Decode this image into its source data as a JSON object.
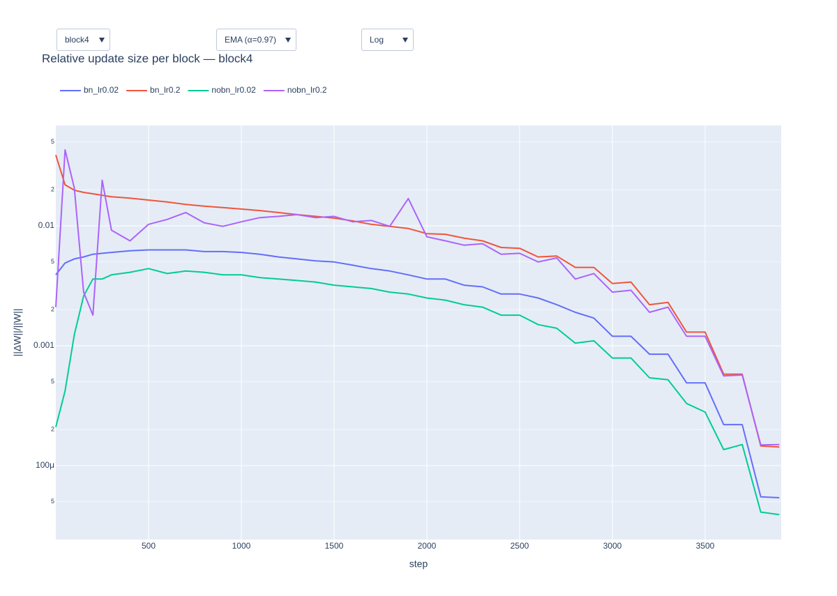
{
  "controls": {
    "block": "block4",
    "smoothing": "EMA (α=0.97)",
    "scale": "Log"
  },
  "chart_data": {
    "type": "line",
    "title": "Relative update size per block — block4",
    "x_label": "step",
    "y_label": "||ΔW||/||W||",
    "ylog": true,
    "grid": true,
    "legend": "top-left",
    "xlim": [
      0,
      3910
    ],
    "ylim": [
      2.42e-05,
      0.0687
    ],
    "xticks": [
      500,
      1000,
      1500,
      2000,
      2500,
      3000,
      3500
    ],
    "yticks": [
      {
        "value": 5e-05,
        "label": "5"
      },
      {
        "value": 0.0001,
        "label": "100μ"
      },
      {
        "value": 0.0002,
        "label": "2"
      },
      {
        "value": 0.0005,
        "label": "5"
      },
      0.001,
      {
        "value": 0.002,
        "label": "2"
      },
      {
        "value": 0.005,
        "label": "5"
      },
      0.01,
      {
        "value": 0.02,
        "label": "2"
      },
      {
        "value": 0.05,
        "label": "5"
      }
    ],
    "x": [
      0,
      50,
      100,
      150,
      200,
      250,
      300,
      400,
      500,
      600,
      700,
      800,
      900,
      1000,
      1100,
      1200,
      1300,
      1400,
      1500,
      1600,
      1700,
      1800,
      1900,
      2000,
      2100,
      2200,
      2300,
      2400,
      2500,
      2600,
      2700,
      2800,
      2900,
      3000,
      3100,
      3200,
      3300,
      3400,
      3500,
      3600,
      3700,
      3800,
      3900
    ],
    "series": [
      {
        "name": "bn_lr0.02",
        "color": "#636efa",
        "values": [
          0.0039,
          0.0049,
          0.0053,
          0.0055,
          0.0058,
          0.0059,
          0.006,
          0.0062,
          0.0063,
          0.0063,
          0.0063,
          0.0061,
          0.0061,
          0.006,
          0.0058,
          0.0055,
          0.0053,
          0.0051,
          0.005,
          0.0047,
          0.0044,
          0.0042,
          0.0039,
          0.0036,
          0.0036,
          0.0032,
          0.0031,
          0.0027,
          0.0027,
          0.0025,
          0.0022,
          0.0019,
          0.0017,
          0.0012,
          0.0012,
          0.00085,
          0.00085,
          0.00049,
          0.00049,
          0.00022,
          0.00022,
          5.5e-05,
          5.4e-05
        ]
      },
      {
        "name": "bn_lr0.2",
        "color": "#ef553b",
        "values": [
          0.039,
          0.022,
          0.0198,
          0.019,
          0.0185,
          0.018,
          0.0175,
          0.017,
          0.0164,
          0.0158,
          0.0151,
          0.0146,
          0.0142,
          0.0138,
          0.0134,
          0.0129,
          0.0124,
          0.012,
          0.0116,
          0.011,
          0.0103,
          0.0099,
          0.0095,
          0.0086,
          0.0085,
          0.0079,
          0.0075,
          0.0066,
          0.0065,
          0.0055,
          0.0056,
          0.0045,
          0.0045,
          0.0033,
          0.0034,
          0.0022,
          0.0023,
          0.0013,
          0.0013,
          0.00058,
          0.00058,
          0.000146,
          0.000143
        ]
      },
      {
        "name": "nobn_lr0.02",
        "color": "#00cc96",
        "values": [
          0.00021,
          0.00042,
          0.00124,
          0.0026,
          0.0036,
          0.0036,
          0.0039,
          0.0041,
          0.0044,
          0.004,
          0.0042,
          0.0041,
          0.0039,
          0.0039,
          0.0037,
          0.0036,
          0.0035,
          0.0034,
          0.0032,
          0.0031,
          0.003,
          0.0028,
          0.0027,
          0.0025,
          0.0024,
          0.0022,
          0.0021,
          0.0018,
          0.0018,
          0.0015,
          0.0014,
          0.00105,
          0.0011,
          0.00079,
          0.00079,
          0.00054,
          0.00052,
          0.00033,
          0.00028,
          0.000136,
          0.00015,
          4.1e-05,
          3.9e-05
        ]
      },
      {
        "name": "nobn_lr0.2",
        "color": "#ab63fa",
        "values": [
          0.0021,
          0.043,
          0.0206,
          0.0028,
          0.0018,
          0.024,
          0.0092,
          0.0075,
          0.0103,
          0.0113,
          0.0129,
          0.0106,
          0.0099,
          0.0108,
          0.0117,
          0.012,
          0.0124,
          0.0117,
          0.012,
          0.0108,
          0.0111,
          0.0099,
          0.0169,
          0.0081,
          0.0075,
          0.0069,
          0.0071,
          0.0058,
          0.0059,
          0.005,
          0.0054,
          0.0036,
          0.004,
          0.0028,
          0.0029,
          0.0019,
          0.0021,
          0.0012,
          0.0012,
          0.00056,
          0.00057,
          0.000149,
          0.00015
        ]
      }
    ]
  }
}
